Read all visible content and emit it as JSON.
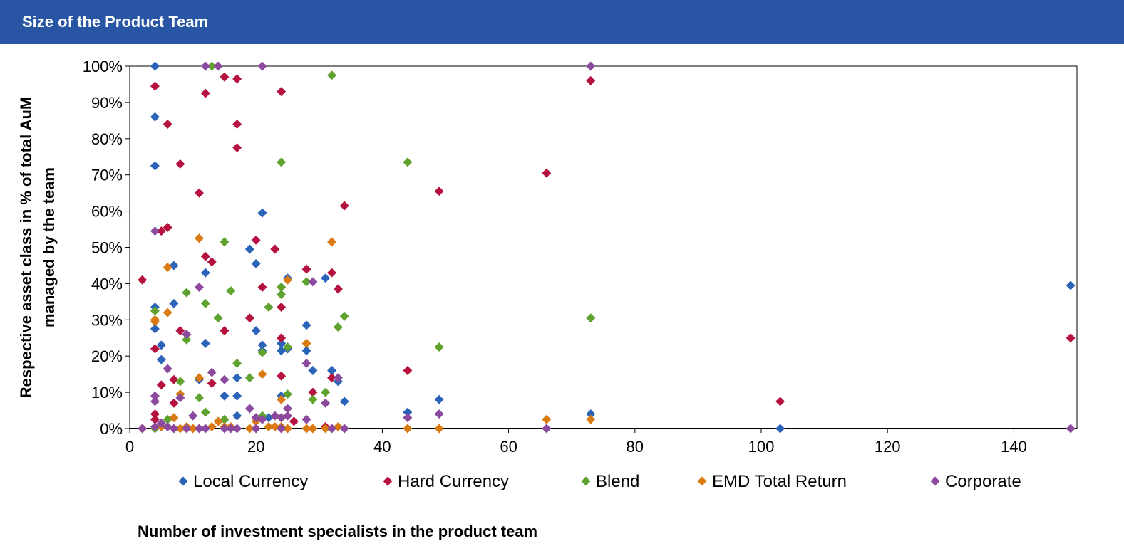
{
  "header": {
    "title": "Size of the Product Team"
  },
  "colors": {
    "header_bg": "#2856a4",
    "Local Currency": "#2b63b8",
    "Hard Currency": "#b5123f",
    "Blend": "#5fa32e",
    "EMD Total Return": "#d97a12",
    "Corporate": "#8c4a9e"
  },
  "chart_data": {
    "type": "scatter",
    "title": "",
    "xlabel": "Number of investment specialists in the product team",
    "ylabel": "Respective asset class in % of total AuM managed by the team",
    "xlim": [
      0,
      150
    ],
    "ylim": [
      0,
      1
    ],
    "x_ticks": [
      0,
      20,
      40,
      60,
      80,
      100,
      120,
      140
    ],
    "y_ticks": [
      "0%",
      "10%",
      "20%",
      "30%",
      "40%",
      "50%",
      "60%",
      "70%",
      "80%",
      "90%",
      "100%"
    ],
    "marker": "diamond",
    "legend_position": "bottom",
    "series": [
      {
        "name": "Local Currency",
        "points": [
          [
            4,
            1.0
          ],
          [
            4,
            0.86
          ],
          [
            4,
            0.725
          ],
          [
            4,
            0.335
          ],
          [
            4,
            0.275
          ],
          [
            5,
            0.23
          ],
          [
            5,
            0.19
          ],
          [
            7,
            0.45
          ],
          [
            7,
            0.345
          ],
          [
            11,
            0.135
          ],
          [
            12,
            0.43
          ],
          [
            12,
            0.235
          ],
          [
            15,
            0.09
          ],
          [
            17,
            0.14
          ],
          [
            17,
            0.09
          ],
          [
            17,
            0.035
          ],
          [
            19,
            0.495
          ],
          [
            20,
            0.455
          ],
          [
            20,
            0.27
          ],
          [
            21,
            0.595
          ],
          [
            21,
            0.23
          ],
          [
            21,
            0.215
          ],
          [
            22,
            0.03
          ],
          [
            24,
            0.39
          ],
          [
            24,
            0.235
          ],
          [
            24,
            0.215
          ],
          [
            24,
            0.09
          ],
          [
            25,
            0.415
          ],
          [
            25,
            0.22
          ],
          [
            28,
            0.285
          ],
          [
            28,
            0.215
          ],
          [
            29,
            0.16
          ],
          [
            31,
            0.415
          ],
          [
            32,
            0.16
          ],
          [
            33,
            0.13
          ],
          [
            34,
            0.075
          ],
          [
            44,
            0.045
          ],
          [
            49,
            0.08
          ],
          [
            73,
            0.04
          ],
          [
            103,
            0.0
          ],
          [
            149,
            0.395
          ]
        ]
      },
      {
        "name": "Hard Currency",
        "points": [
          [
            2,
            0.41
          ],
          [
            4,
            0.945
          ],
          [
            4,
            0.22
          ],
          [
            4,
            0.04
          ],
          [
            4,
            0.025
          ],
          [
            5,
            0.545
          ],
          [
            5,
            0.12
          ],
          [
            6,
            0.84
          ],
          [
            6,
            0.555
          ],
          [
            7,
            0.135
          ],
          [
            7,
            0.07
          ],
          [
            8,
            0.73
          ],
          [
            8,
            0.27
          ],
          [
            11,
            0.65
          ],
          [
            12,
            0.925
          ],
          [
            12,
            0.475
          ],
          [
            13,
            0.46
          ],
          [
            13,
            0.125
          ],
          [
            15,
            0.97
          ],
          [
            15,
            0.27
          ],
          [
            17,
            0.965
          ],
          [
            17,
            0.84
          ],
          [
            17,
            0.775
          ],
          [
            19,
            0.305
          ],
          [
            20,
            0.52
          ],
          [
            21,
            0.39
          ],
          [
            23,
            0.495
          ],
          [
            24,
            0.93
          ],
          [
            24,
            0.335
          ],
          [
            24,
            0.25
          ],
          [
            24,
            0.145
          ],
          [
            28,
            0.44
          ],
          [
            29,
            0.1
          ],
          [
            32,
            0.43
          ],
          [
            32,
            0.14
          ],
          [
            33,
            0.385
          ],
          [
            34,
            0.615
          ],
          [
            44,
            0.16
          ],
          [
            49,
            0.655
          ],
          [
            66,
            0.705
          ],
          [
            73,
            0.96
          ],
          [
            103,
            0.075
          ],
          [
            149,
            0.25
          ],
          [
            20,
            0.03
          ],
          [
            26,
            0.02
          ],
          [
            31,
            0.005
          ]
        ]
      },
      {
        "name": "Blend",
        "points": [
          [
            4,
            0.325
          ],
          [
            4,
            0.0
          ],
          [
            6,
            0.025
          ],
          [
            8,
            0.13
          ],
          [
            9,
            0.375
          ],
          [
            9,
            0.245
          ],
          [
            11,
            0.085
          ],
          [
            12,
            0.345
          ],
          [
            12,
            0.045
          ],
          [
            13,
            1.0
          ],
          [
            14,
            0.305
          ],
          [
            15,
            0.515
          ],
          [
            15,
            0.025
          ],
          [
            16,
            0.38
          ],
          [
            17,
            0.18
          ],
          [
            19,
            0.14
          ],
          [
            21,
            0.21
          ],
          [
            22,
            0.335
          ],
          [
            24,
            0.735
          ],
          [
            24,
            0.37
          ],
          [
            24,
            0.39
          ],
          [
            25,
            0.225
          ],
          [
            25,
            0.095
          ],
          [
            28,
            0.405
          ],
          [
            29,
            0.08
          ],
          [
            31,
            0.1
          ],
          [
            32,
            0.975
          ],
          [
            33,
            0.28
          ],
          [
            34,
            0.31
          ],
          [
            44,
            0.735
          ],
          [
            49,
            0.225
          ],
          [
            73,
            0.305
          ],
          [
            21,
            0.035
          ]
        ]
      },
      {
        "name": "EMD Total Return",
        "points": [
          [
            2,
            0.0
          ],
          [
            4,
            0.3
          ],
          [
            4,
            0.295
          ],
          [
            5,
            0.005
          ],
          [
            6,
            0.445
          ],
          [
            6,
            0.32
          ],
          [
            7,
            0.03
          ],
          [
            8,
            0.095
          ],
          [
            8,
            0.0
          ],
          [
            9,
            0.005
          ],
          [
            10,
            0.0
          ],
          [
            11,
            0.525
          ],
          [
            11,
            0.14
          ],
          [
            13,
            0.005
          ],
          [
            14,
            0.02
          ],
          [
            15,
            0.005
          ],
          [
            16,
            0.005
          ],
          [
            19,
            0.0
          ],
          [
            20,
            0.02
          ],
          [
            21,
            0.15
          ],
          [
            22,
            0.005
          ],
          [
            23,
            0.005
          ],
          [
            24,
            0.08
          ],
          [
            24,
            0.03
          ],
          [
            24,
            0.005
          ],
          [
            25,
            0.41
          ],
          [
            25,
            0.0
          ],
          [
            28,
            0.235
          ],
          [
            28,
            0.0
          ],
          [
            29,
            0.0
          ],
          [
            31,
            0.0
          ],
          [
            32,
            0.515
          ],
          [
            33,
            0.005
          ],
          [
            44,
            0.0
          ],
          [
            49,
            0.0
          ],
          [
            66,
            0.025
          ],
          [
            73,
            0.025
          ]
        ]
      },
      {
        "name": "Corporate",
        "points": [
          [
            2,
            0.0
          ],
          [
            4,
            0.545
          ],
          [
            4,
            0.09
          ],
          [
            4,
            0.075
          ],
          [
            4,
            0.005
          ],
          [
            5,
            0.015
          ],
          [
            6,
            0.165
          ],
          [
            6,
            0.005
          ],
          [
            7,
            0.0
          ],
          [
            8,
            0.085
          ],
          [
            9,
            0.26
          ],
          [
            9,
            0.0
          ],
          [
            10,
            0.035
          ],
          [
            11,
            0.39
          ],
          [
            11,
            0.0
          ],
          [
            12,
            1.0
          ],
          [
            12,
            0.0
          ],
          [
            13,
            0.155
          ],
          [
            14,
            1.0
          ],
          [
            15,
            0.135
          ],
          [
            15,
            0.0
          ],
          [
            16,
            0.0
          ],
          [
            17,
            0.0
          ],
          [
            19,
            0.055
          ],
          [
            20,
            0.03
          ],
          [
            20,
            0.0
          ],
          [
            21,
            1.0
          ],
          [
            21,
            0.025
          ],
          [
            23,
            0.035
          ],
          [
            24,
            0.03
          ],
          [
            24,
            0.0
          ],
          [
            25,
            0.055
          ],
          [
            25,
            0.035
          ],
          [
            28,
            0.18
          ],
          [
            28,
            0.025
          ],
          [
            29,
            0.405
          ],
          [
            31,
            0.07
          ],
          [
            32,
            0.0
          ],
          [
            33,
            0.14
          ],
          [
            34,
            0.0
          ],
          [
            44,
            0.03
          ],
          [
            49,
            0.04
          ],
          [
            66,
            0.0
          ],
          [
            73,
            1.0
          ],
          [
            149,
            0.0
          ]
        ]
      }
    ]
  }
}
